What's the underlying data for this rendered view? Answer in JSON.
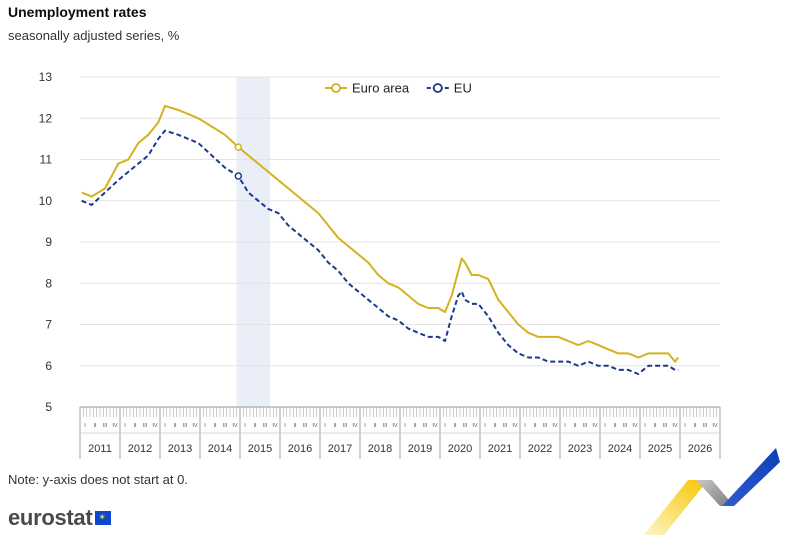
{
  "header": {
    "title": "Unemployment rates",
    "subtitle": "seasonally adjusted series, %"
  },
  "footer": {
    "note": "Note: y-axis does not start at 0.",
    "brand": "eurostat"
  },
  "colors": {
    "euro_area": "#d3b21d",
    "eu": "#1b3a8c",
    "grid": "#e4e4e4",
    "highlight": "#e9eef9"
  },
  "chart_data": {
    "type": "line",
    "x_unit": "month",
    "ylim": [
      5,
      13
    ],
    "yticks": [
      "5",
      "6",
      "7",
      "8",
      "9",
      "10",
      "11",
      "12",
      "13"
    ],
    "years": [
      "2011",
      "2012",
      "2013",
      "2014",
      "2015",
      "2016",
      "2017",
      "2018",
      "2019",
      "2020",
      "2021",
      "2022",
      "2023",
      "2024",
      "2025",
      "2026"
    ],
    "quarter_labels": [
      "I",
      "II",
      "III",
      "IV"
    ],
    "legend_position": "top-center",
    "highlight_range": [
      "2014-12",
      "2015-09"
    ],
    "markers": [
      {
        "series": "Euro area",
        "x": "2014-12",
        "y": 11.3
      },
      {
        "series": "EU",
        "x": "2014-12",
        "y": 10.6
      }
    ],
    "series": [
      {
        "name": "Euro area",
        "style": "solid",
        "x": [
          "2011-01",
          "2011-04",
          "2011-08",
          "2011-12",
          "2012-03",
          "2012-06",
          "2012-09",
          "2012-12",
          "2013-02",
          "2013-06",
          "2013-09",
          "2013-12",
          "2014-04",
          "2014-08",
          "2014-12",
          "2015-03",
          "2015-06",
          "2015-09",
          "2015-12",
          "2016-03",
          "2016-06",
          "2016-09",
          "2016-12",
          "2017-03",
          "2017-06",
          "2017-09",
          "2017-12",
          "2018-03",
          "2018-06",
          "2018-09",
          "2018-12",
          "2019-03",
          "2019-06",
          "2019-09",
          "2019-12",
          "2020-02",
          "2020-04",
          "2020-06",
          "2020-07",
          "2020-08",
          "2020-10",
          "2020-12",
          "2021-03",
          "2021-06",
          "2021-09",
          "2021-12",
          "2022-03",
          "2022-06",
          "2022-09",
          "2022-12",
          "2023-03",
          "2023-06",
          "2023-09",
          "2023-12",
          "2024-03",
          "2024-06",
          "2024-09",
          "2024-12",
          "2025-03",
          "2025-06",
          "2025-09",
          "2025-11",
          "2025-12"
        ],
        "y": [
          10.2,
          10.1,
          10.3,
          10.9,
          11.0,
          11.4,
          11.6,
          11.9,
          12.3,
          12.2,
          12.1,
          12.0,
          11.8,
          11.6,
          11.3,
          11.1,
          10.9,
          10.7,
          10.5,
          10.3,
          10.1,
          9.9,
          9.7,
          9.4,
          9.1,
          8.9,
          8.7,
          8.5,
          8.2,
          8.0,
          7.9,
          7.7,
          7.5,
          7.4,
          7.4,
          7.3,
          7.7,
          8.3,
          8.6,
          8.5,
          8.2,
          8.2,
          8.1,
          7.6,
          7.3,
          7.0,
          6.8,
          6.7,
          6.7,
          6.7,
          6.6,
          6.5,
          6.6,
          6.5,
          6.4,
          6.3,
          6.3,
          6.2,
          6.3,
          6.3,
          6.3,
          6.1,
          6.2
        ]
      },
      {
        "name": "EU",
        "style": "dashed",
        "x": [
          "2011-01",
          "2011-04",
          "2011-08",
          "2011-12",
          "2012-03",
          "2012-06",
          "2012-09",
          "2012-12",
          "2013-02",
          "2013-06",
          "2013-09",
          "2013-12",
          "2014-04",
          "2014-08",
          "2014-12",
          "2015-03",
          "2015-06",
          "2015-09",
          "2015-12",
          "2016-03",
          "2016-06",
          "2016-09",
          "2016-12",
          "2017-03",
          "2017-06",
          "2017-09",
          "2017-12",
          "2018-03",
          "2018-06",
          "2018-09",
          "2018-12",
          "2019-03",
          "2019-06",
          "2019-09",
          "2019-12",
          "2020-02",
          "2020-04",
          "2020-06",
          "2020-07",
          "2020-08",
          "2020-10",
          "2020-12",
          "2021-03",
          "2021-06",
          "2021-09",
          "2021-12",
          "2022-03",
          "2022-06",
          "2022-09",
          "2022-12",
          "2023-03",
          "2023-06",
          "2023-09",
          "2023-12",
          "2024-03",
          "2024-06",
          "2024-09",
          "2024-12",
          "2025-03",
          "2025-06",
          "2025-09",
          "2025-11",
          "2025-12"
        ],
        "y": [
          10.0,
          9.9,
          10.2,
          10.5,
          10.7,
          10.9,
          11.1,
          11.5,
          11.7,
          11.6,
          11.5,
          11.4,
          11.1,
          10.8,
          10.6,
          10.2,
          10.0,
          9.8,
          9.7,
          9.4,
          9.2,
          9.0,
          8.8,
          8.5,
          8.3,
          8.0,
          7.8,
          7.6,
          7.4,
          7.2,
          7.1,
          6.9,
          6.8,
          6.7,
          6.7,
          6.6,
          7.2,
          7.7,
          7.8,
          7.6,
          7.5,
          7.5,
          7.2,
          6.8,
          6.5,
          6.3,
          6.2,
          6.2,
          6.1,
          6.1,
          6.1,
          6.0,
          6.1,
          6.0,
          6.0,
          5.9,
          5.9,
          5.8,
          6.0,
          6.0,
          6.0,
          5.9,
          5.9
        ]
      }
    ]
  }
}
